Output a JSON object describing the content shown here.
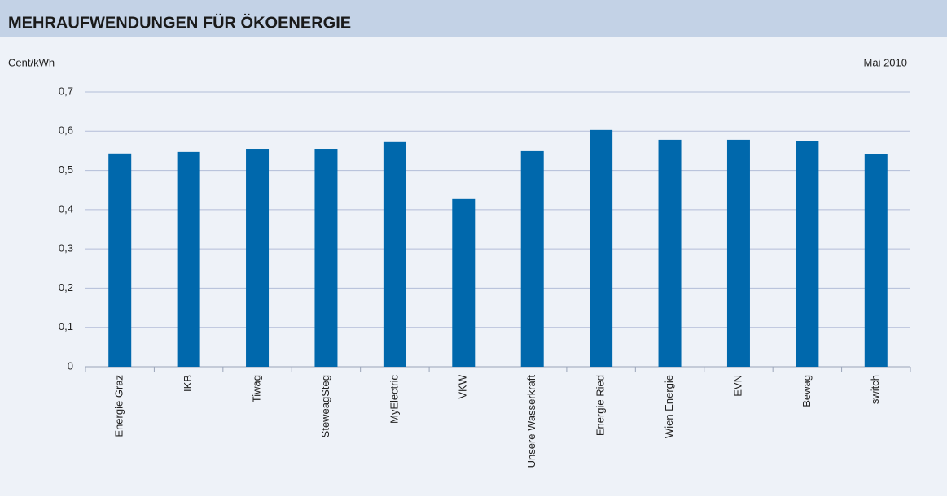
{
  "chart_data": {
    "type": "bar",
    "title": "MEHRAUFWENDUNGEN FÜR ÖKOENERGIE",
    "y_label": "Cent/kWh",
    "annotation": "Mai 2010",
    "categories": [
      "Energie Graz",
      "IKB",
      "Tiwag",
      "SteweagSteg",
      "MyElectric",
      "VKW",
      "Unsere Wasserkraft",
      "Energie Ried",
      "Wien Energie",
      "EVN",
      "Bewag",
      "switch"
    ],
    "values": [
      0.543,
      0.547,
      0.555,
      0.555,
      0.572,
      0.427,
      0.549,
      0.603,
      0.578,
      0.578,
      0.574,
      0.541
    ],
    "color": "#0068ac",
    "ylim": [
      0,
      0.7
    ],
    "yticks": [
      0,
      {
        "value": 0.1,
        "label": "0,1"
      },
      {
        "value": 0.2,
        "label": "0,2"
      },
      {
        "value": 0.3,
        "label": "0,3"
      },
      {
        "value": 0.4,
        "label": "0,4"
      },
      {
        "value": 0.5,
        "label": "0,5"
      },
      {
        "value": 0.6,
        "label": "0,6"
      },
      {
        "value": 0.7,
        "label": "0,7"
      }
    ],
    "grid": true
  }
}
